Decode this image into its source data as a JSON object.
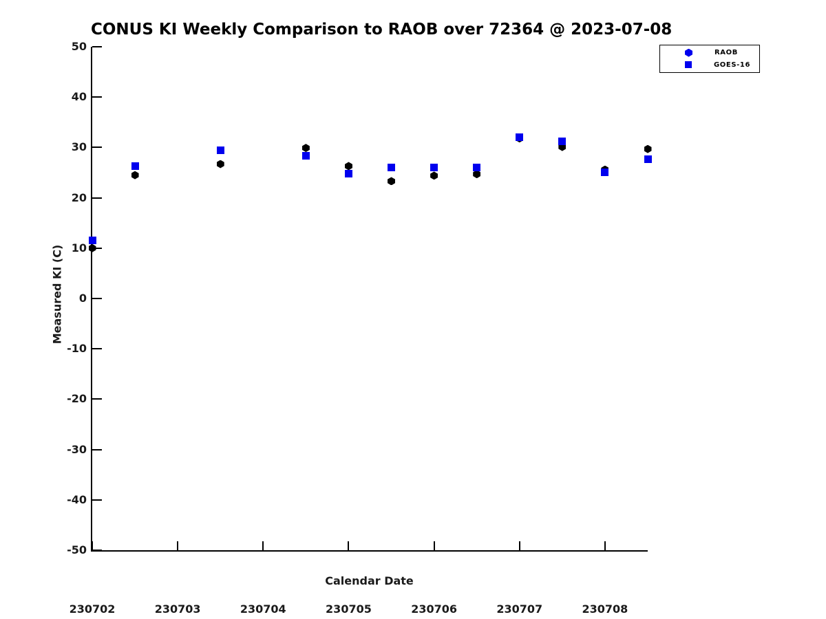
{
  "colors": {
    "series_blue": "#0000ee",
    "series_black": "#000000",
    "text": "#1a1a1a",
    "background": "#ffffff"
  },
  "chart_data": {
    "type": "scatter",
    "title": "CONUS KI Weekly Comparison to RAOB over 72364 @ 2023-07-08",
    "xlabel": "Calendar Date",
    "ylabel": "Measured KI (C)",
    "xlim": [
      230702,
      230708.5
    ],
    "ylim": [
      -50,
      50
    ],
    "x_ticks": [
      230702,
      230703,
      230704,
      230705,
      230706,
      230707,
      230708
    ],
    "y_ticks": [
      50,
      40,
      30,
      20,
      10,
      0,
      -10,
      -20,
      -30,
      -40,
      -50
    ],
    "grid": false,
    "legend": {
      "position": "top-right",
      "entries": [
        {
          "name": "RAOB",
          "marker": "hexagon",
          "color": "#0000ee"
        },
        {
          "name": "GOES-16",
          "marker": "square",
          "color": "#0000ee"
        }
      ]
    },
    "series": [
      {
        "name": "RAOB",
        "marker": "hexagon",
        "color": "#000000",
        "points": [
          [
            230702.0,
            10.0
          ],
          [
            230702.5,
            24.5
          ],
          [
            230703.5,
            26.7
          ],
          [
            230704.5,
            29.9
          ],
          [
            230705.0,
            26.3
          ],
          [
            230705.5,
            23.3
          ],
          [
            230706.0,
            24.4
          ],
          [
            230706.5,
            24.7
          ],
          [
            230707.0,
            31.8
          ],
          [
            230707.5,
            30.1
          ],
          [
            230708.0,
            25.6
          ],
          [
            230708.5,
            29.7
          ]
        ]
      },
      {
        "name": "GOES-16",
        "marker": "square",
        "color": "#0000ee",
        "points": [
          [
            230702.0,
            11.5
          ],
          [
            230702.5,
            26.3
          ],
          [
            230703.5,
            29.5
          ],
          [
            230704.5,
            28.4
          ],
          [
            230705.0,
            24.8
          ],
          [
            230705.5,
            26.0
          ],
          [
            230706.0,
            26.0
          ],
          [
            230706.5,
            26.0
          ],
          [
            230707.0,
            32.0
          ],
          [
            230707.5,
            31.2
          ],
          [
            230708.0,
            25.1
          ],
          [
            230708.5,
            27.6
          ]
        ]
      }
    ]
  }
}
